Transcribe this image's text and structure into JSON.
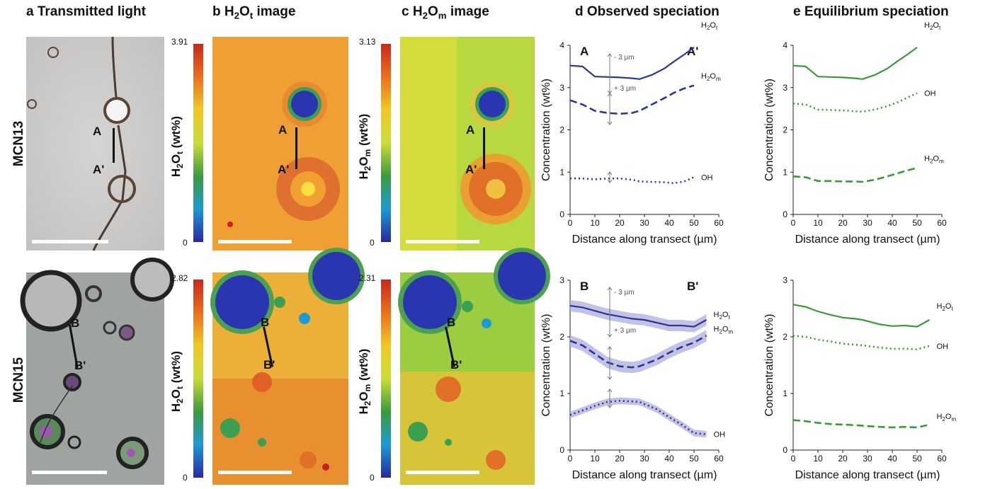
{
  "headers": {
    "a": "a Transmitted light",
    "b_prefix": "b H",
    "b_sub": "2",
    "b_mid": "O",
    "b_sub2": "t",
    "b_suffix": " image",
    "c_prefix": "c H",
    "c_sub": "2",
    "c_mid": "O",
    "c_sub2": "m",
    "c_suffix": " image",
    "d": "d Observed speciation",
    "e": "e Equilibrium speciation"
  },
  "rows": [
    {
      "label": "MCN13",
      "cb_b_max": "3.91",
      "cb_b_min": "0",
      "cb_c_max": "3.13",
      "cb_c_min": "0",
      "pt_start": "A",
      "pt_end": "A'"
    },
    {
      "label": "MCN15",
      "cb_b_max": "2.82",
      "cb_b_min": "0",
      "cb_c_max": "2.31",
      "cb_c_min": "0",
      "pt_start": "B",
      "pt_end": "B'"
    }
  ],
  "colorbar_titles": {
    "b_pre": "H",
    "b_sub": "2",
    "b_mid": "O",
    "b_sub2": "t",
    "b_post": " (wt%)",
    "c_pre": "H",
    "c_sub": "2",
    "c_mid": "O",
    "c_sub2": "m",
    "c_post": " (wt%)"
  },
  "colors": {
    "observed": "#2f3598",
    "observed_band": "#b3b3dd",
    "equilibrium": "#3a9a3a"
  },
  "chart_data": [
    {
      "type": "line",
      "panel": "d",
      "row": "MCN13",
      "xlabel": "Distance along transect (µm)",
      "ylabel": "Concentration (wt%)",
      "xlim": [
        0,
        60
      ],
      "ylim": [
        0,
        4
      ],
      "xticks": [
        "0",
        "10",
        "20",
        "30",
        "40",
        "50",
        "60"
      ],
      "yticks": [
        "0",
        "1",
        "2",
        "3",
        "4"
      ],
      "corner_labels": [
        "A",
        "A'"
      ],
      "annotations": [
        "- 3 µm",
        "+ 3 µm"
      ],
      "series": [
        {
          "name": "H2Ot",
          "style": "solid",
          "x": [
            0,
            5,
            10,
            15,
            20,
            25,
            28,
            33,
            38,
            42,
            46,
            50
          ],
          "y": [
            3.52,
            3.5,
            3.26,
            3.25,
            3.24,
            3.22,
            3.2,
            3.3,
            3.45,
            3.62,
            3.78,
            3.95
          ]
        },
        {
          "name": "H2Om",
          "style": "dashed",
          "x": [
            0,
            5,
            10,
            15,
            20,
            25,
            28,
            33,
            38,
            42,
            46,
            50
          ],
          "y": [
            2.7,
            2.6,
            2.45,
            2.4,
            2.38,
            2.4,
            2.45,
            2.6,
            2.75,
            2.88,
            2.98,
            3.05
          ]
        },
        {
          "name": "OH",
          "style": "dotted",
          "x": [
            0,
            5,
            10,
            15,
            20,
            25,
            28,
            33,
            38,
            42,
            46,
            50
          ],
          "y": [
            0.85,
            0.85,
            0.83,
            0.85,
            0.85,
            0.82,
            0.78,
            0.77,
            0.76,
            0.74,
            0.78,
            0.88
          ]
        }
      ]
    },
    {
      "type": "line",
      "panel": "e",
      "row": "MCN13",
      "xlabel": "Distance along transect (µm)",
      "ylabel": "Concentration (wt%)",
      "xlim": [
        0,
        60
      ],
      "ylim": [
        0,
        4
      ],
      "xticks": [
        "0",
        "10",
        "20",
        "30",
        "40",
        "50",
        "60"
      ],
      "yticks": [
        "0",
        "1",
        "2",
        "3",
        "4"
      ],
      "series": [
        {
          "name": "H2Ot",
          "style": "solid",
          "x": [
            0,
            5,
            10,
            15,
            20,
            25,
            28,
            33,
            38,
            42,
            46,
            50
          ],
          "y": [
            3.52,
            3.5,
            3.26,
            3.25,
            3.24,
            3.22,
            3.2,
            3.3,
            3.45,
            3.62,
            3.78,
            3.95
          ]
        },
        {
          "name": "OH",
          "style": "dotted",
          "x": [
            0,
            5,
            10,
            15,
            20,
            25,
            28,
            33,
            38,
            42,
            46,
            50
          ],
          "y": [
            2.62,
            2.6,
            2.48,
            2.47,
            2.46,
            2.44,
            2.43,
            2.48,
            2.56,
            2.65,
            2.76,
            2.87
          ]
        },
        {
          "name": "H2Om",
          "style": "dashed",
          "x": [
            0,
            5,
            10,
            15,
            20,
            25,
            28,
            33,
            38,
            42,
            46,
            50
          ],
          "y": [
            0.9,
            0.88,
            0.79,
            0.79,
            0.78,
            0.78,
            0.77,
            0.82,
            0.9,
            0.97,
            1.04,
            1.1
          ]
        }
      ]
    },
    {
      "type": "line",
      "panel": "d",
      "row": "MCN15",
      "xlabel": "Distance along transect (µm)",
      "ylabel": "Concentration (wt%)",
      "xlim": [
        0,
        60
      ],
      "ylim": [
        0,
        3
      ],
      "xticks": [
        "0",
        "10",
        "20",
        "30",
        "40",
        "50",
        "60"
      ],
      "yticks": [
        "0",
        "1",
        "2",
        "3"
      ],
      "corner_labels": [
        "B",
        "B'"
      ],
      "annotations": [
        "- 3 µm",
        "+ 3 µm"
      ],
      "series": [
        {
          "name": "H2Ot",
          "style": "solid",
          "band": 0.1,
          "x": [
            0,
            5,
            10,
            15,
            20,
            25,
            30,
            35,
            40,
            45,
            50,
            55
          ],
          "y": [
            2.55,
            2.52,
            2.46,
            2.4,
            2.36,
            2.32,
            2.3,
            2.25,
            2.2,
            2.2,
            2.18,
            2.3
          ]
        },
        {
          "name": "H2Om",
          "style": "dashed",
          "band": 0.1,
          "x": [
            0,
            5,
            10,
            15,
            20,
            25,
            28,
            35,
            40,
            45,
            50,
            55
          ],
          "y": [
            1.93,
            1.85,
            1.7,
            1.55,
            1.48,
            1.46,
            1.48,
            1.6,
            1.72,
            1.82,
            1.9,
            2.02
          ]
        },
        {
          "name": "OH",
          "style": "dotted",
          "band": 0.06,
          "x": [
            0,
            5,
            10,
            15,
            20,
            25,
            28,
            35,
            40,
            45,
            50,
            55
          ],
          "y": [
            0.62,
            0.7,
            0.78,
            0.85,
            0.87,
            0.86,
            0.85,
            0.72,
            0.58,
            0.45,
            0.3,
            0.28
          ]
        }
      ]
    },
    {
      "type": "line",
      "panel": "e",
      "row": "MCN15",
      "xlabel": "Distance along transect (µm)",
      "ylabel": "Concentration (wt%)",
      "xlim": [
        0,
        60
      ],
      "ylim": [
        0,
        3
      ],
      "xticks": [
        "0",
        "10",
        "20",
        "30",
        "40",
        "50",
        "60"
      ],
      "yticks": [
        "0",
        "1",
        "2",
        "3"
      ],
      "series": [
        {
          "name": "H2Ot",
          "style": "solid",
          "x": [
            0,
            5,
            10,
            15,
            20,
            25,
            28,
            35,
            40,
            45,
            50,
            55
          ],
          "y": [
            2.57,
            2.53,
            2.45,
            2.39,
            2.34,
            2.32,
            2.3,
            2.22,
            2.19,
            2.2,
            2.18,
            2.3
          ]
        },
        {
          "name": "OH",
          "style": "dotted",
          "x": [
            0,
            5,
            10,
            15,
            20,
            25,
            28,
            35,
            40,
            45,
            50,
            55
          ],
          "y": [
            2.02,
            2.0,
            1.95,
            1.92,
            1.88,
            1.86,
            1.85,
            1.81,
            1.79,
            1.79,
            1.78,
            1.84
          ]
        },
        {
          "name": "H2Om",
          "style": "dashed",
          "x": [
            0,
            5,
            10,
            15,
            20,
            25,
            28,
            35,
            40,
            45,
            50,
            55
          ],
          "y": [
            0.53,
            0.51,
            0.48,
            0.46,
            0.45,
            0.44,
            0.43,
            0.41,
            0.4,
            0.41,
            0.4,
            0.45
          ]
        }
      ]
    }
  ]
}
